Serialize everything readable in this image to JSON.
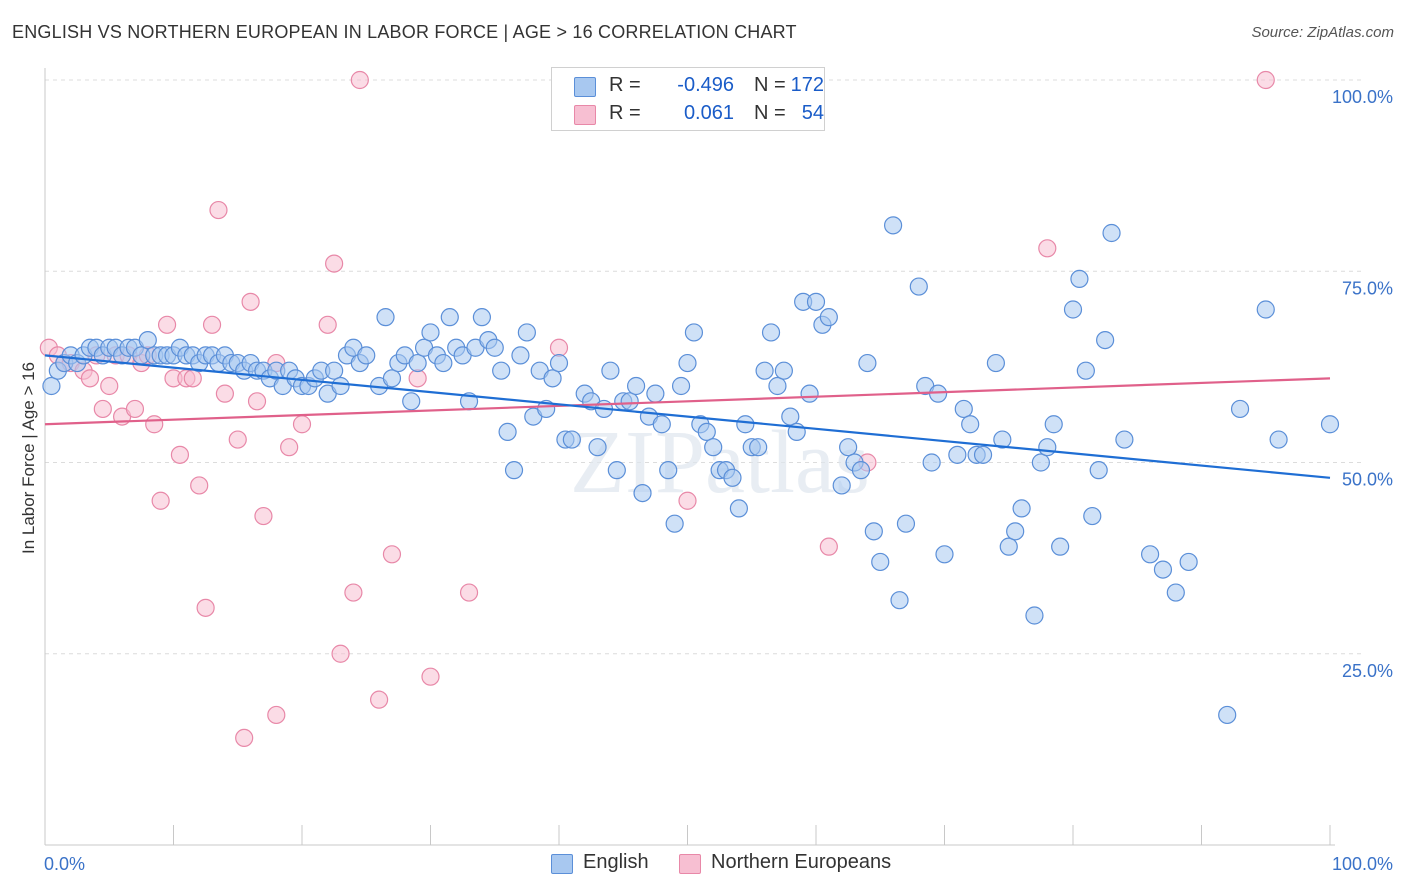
{
  "title": "ENGLISH VS NORTHERN EUROPEAN IN LABOR FORCE | AGE > 16 CORRELATION CHART",
  "source": "Source: ZipAtlas.com",
  "legend": {
    "rows": [
      {
        "r_label": "R =",
        "r_value": "-0.496",
        "n_label": "N =",
        "n_value": "172"
      },
      {
        "r_label": "R =",
        "r_value": "0.061",
        "n_label": "N =",
        "n_value": "54"
      }
    ]
  },
  "bottom_legend": {
    "english": "English",
    "northern": "Northern Europeans"
  },
  "colors": {
    "english_fill": "#a8c8f0",
    "english_stroke": "#5b8fd8",
    "english_line": "#1f6ed4",
    "northern_fill": "#f7bfd2",
    "northern_stroke": "#e888a8",
    "northern_line": "#e0608a",
    "axis_text": "#3a72c8",
    "grid": "#dcdcdc"
  },
  "chart_data": {
    "type": "scatter",
    "title": "ENGLISH VS NORTHERN EUROPEAN IN LABOR FORCE | AGE > 16 CORRELATION CHART",
    "ylabel": "In Labor Force | Age > 16",
    "xlabel": "",
    "xlim": [
      0,
      100
    ],
    "ylim": [
      0,
      100
    ],
    "x_tick_labels": [
      "0.0%",
      "100.0%"
    ],
    "y_tick_values": [
      25,
      50,
      75,
      100
    ],
    "y_tick_labels": [
      "25.0%",
      "50.0%",
      "75.0%",
      "100.0%"
    ],
    "grid": "horizontal dashed",
    "watermark": "ZIPatlas",
    "series": [
      {
        "name": "English",
        "r": -0.496,
        "n": 172,
        "trend": [
          [
            0,
            64.0
          ],
          [
            100,
            48.0
          ]
        ],
        "points": [
          [
            0.5,
            60
          ],
          [
            1,
            62
          ],
          [
            1.5,
            63
          ],
          [
            2,
            64
          ],
          [
            2.5,
            63
          ],
          [
            3,
            64
          ],
          [
            3.5,
            65
          ],
          [
            4,
            65
          ],
          [
            4.5,
            64
          ],
          [
            5,
            65
          ],
          [
            5.5,
            65
          ],
          [
            6,
            64
          ],
          [
            6.5,
            65
          ],
          [
            7,
            65
          ],
          [
            7.5,
            64
          ],
          [
            8,
            66
          ],
          [
            8.5,
            64
          ],
          [
            9,
            64
          ],
          [
            9.5,
            64
          ],
          [
            10,
            64
          ],
          [
            10.5,
            65
          ],
          [
            11,
            64
          ],
          [
            11.5,
            64
          ],
          [
            12,
            63
          ],
          [
            12.5,
            64
          ],
          [
            13,
            64
          ],
          [
            13.5,
            63
          ],
          [
            14,
            64
          ],
          [
            14.5,
            63
          ],
          [
            15,
            63
          ],
          [
            15.5,
            62
          ],
          [
            16,
            63
          ],
          [
            16.5,
            62
          ],
          [
            17,
            62
          ],
          [
            17.5,
            61
          ],
          [
            18,
            62
          ],
          [
            18.5,
            60
          ],
          [
            19,
            62
          ],
          [
            19.5,
            61
          ],
          [
            20,
            60
          ],
          [
            20.5,
            60
          ],
          [
            21,
            61
          ],
          [
            21.5,
            62
          ],
          [
            22,
            59
          ],
          [
            22.5,
            62
          ],
          [
            23,
            60
          ],
          [
            23.5,
            64
          ],
          [
            24,
            65
          ],
          [
            24.5,
            63
          ],
          [
            25,
            64
          ],
          [
            26,
            60
          ],
          [
            26.5,
            69
          ],
          [
            27,
            61
          ],
          [
            27.5,
            63
          ],
          [
            28,
            64
          ],
          [
            28.5,
            58
          ],
          [
            29,
            63
          ],
          [
            29.5,
            65
          ],
          [
            30,
            67
          ],
          [
            30.5,
            64
          ],
          [
            31,
            63
          ],
          [
            31.5,
            69
          ],
          [
            32,
            65
          ],
          [
            32.5,
            64
          ],
          [
            33,
            58
          ],
          [
            33.5,
            65
          ],
          [
            34,
            69
          ],
          [
            34.5,
            66
          ],
          [
            35,
            65
          ],
          [
            35.5,
            62
          ],
          [
            36,
            54
          ],
          [
            36.5,
            49
          ],
          [
            37,
            64
          ],
          [
            37.5,
            67
          ],
          [
            38,
            56
          ],
          [
            38.5,
            62
          ],
          [
            39,
            57
          ],
          [
            39.5,
            61
          ],
          [
            40,
            63
          ],
          [
            40.5,
            53
          ],
          [
            41,
            53
          ],
          [
            42,
            59
          ],
          [
            42.5,
            58
          ],
          [
            43,
            52
          ],
          [
            43.5,
            57
          ],
          [
            44,
            62
          ],
          [
            44.5,
            49
          ],
          [
            45,
            58
          ],
          [
            45.5,
            58
          ],
          [
            46,
            60
          ],
          [
            46.5,
            46
          ],
          [
            47,
            56
          ],
          [
            47.5,
            59
          ],
          [
            48,
            55
          ],
          [
            48.5,
            49
          ],
          [
            49,
            42
          ],
          [
            49.5,
            60
          ],
          [
            50,
            63
          ],
          [
            50.5,
            67
          ],
          [
            51,
            55
          ],
          [
            51.5,
            54
          ],
          [
            52,
            52
          ],
          [
            52.5,
            49
          ],
          [
            53,
            49
          ],
          [
            53.5,
            48
          ],
          [
            54,
            44
          ],
          [
            54.5,
            55
          ],
          [
            55,
            52
          ],
          [
            55.5,
            52
          ],
          [
            56,
            62
          ],
          [
            56.5,
            67
          ],
          [
            57,
            60
          ],
          [
            57.5,
            62
          ],
          [
            58,
            56
          ],
          [
            58.5,
            54
          ],
          [
            59,
            71
          ],
          [
            59.5,
            59
          ],
          [
            60,
            71
          ],
          [
            60.5,
            68
          ],
          [
            61,
            69
          ],
          [
            62,
            47
          ],
          [
            62.5,
            52
          ],
          [
            63,
            50
          ],
          [
            63.5,
            49
          ],
          [
            64,
            63
          ],
          [
            64.5,
            41
          ],
          [
            65,
            37
          ],
          [
            66,
            81
          ],
          [
            66.5,
            32
          ],
          [
            67,
            42
          ],
          [
            68,
            73
          ],
          [
            68.5,
            60
          ],
          [
            69,
            50
          ],
          [
            69.5,
            59
          ],
          [
            70,
            38
          ],
          [
            71,
            51
          ],
          [
            71.5,
            57
          ],
          [
            72,
            55
          ],
          [
            72.5,
            51
          ],
          [
            73,
            51
          ],
          [
            74,
            63
          ],
          [
            74.5,
            53
          ],
          [
            75,
            39
          ],
          [
            75.5,
            41
          ],
          [
            76,
            44
          ],
          [
            77,
            30
          ],
          [
            77.5,
            50
          ],
          [
            78,
            52
          ],
          [
            78.5,
            55
          ],
          [
            79,
            39
          ],
          [
            80,
            70
          ],
          [
            80.5,
            74
          ],
          [
            81,
            62
          ],
          [
            81.5,
            43
          ],
          [
            82,
            49
          ],
          [
            82.5,
            66
          ],
          [
            83,
            80
          ],
          [
            84,
            53
          ],
          [
            86,
            38
          ],
          [
            87,
            36
          ],
          [
            88,
            33
          ],
          [
            89,
            37
          ],
          [
            92,
            17
          ],
          [
            93,
            57
          ],
          [
            95,
            70
          ],
          [
            96,
            53
          ],
          [
            100,
            55
          ]
        ]
      },
      {
        "name": "Northern Europeans",
        "r": 0.061,
        "n": 54,
        "trend": [
          [
            0,
            55.0
          ],
          [
            100,
            61.0
          ]
        ],
        "points": [
          [
            0.3,
            65
          ],
          [
            1,
            64
          ],
          [
            1.5,
            63
          ],
          [
            2,
            63
          ],
          [
            3,
            62
          ],
          [
            3.5,
            61
          ],
          [
            4,
            64
          ],
          [
            4.5,
            57
          ],
          [
            5,
            60
          ],
          [
            5.5,
            64
          ],
          [
            6,
            56
          ],
          [
            6.5,
            64
          ],
          [
            7,
            57
          ],
          [
            7.5,
            63
          ],
          [
            8,
            64
          ],
          [
            8.5,
            55
          ],
          [
            9,
            45
          ],
          [
            9.5,
            68
          ],
          [
            10,
            61
          ],
          [
            10.5,
            51
          ],
          [
            11,
            61
          ],
          [
            11.5,
            61
          ],
          [
            12,
            47
          ],
          [
            12.5,
            31
          ],
          [
            13,
            68
          ],
          [
            13.5,
            83
          ],
          [
            14,
            59
          ],
          [
            15,
            53
          ],
          [
            15.5,
            14
          ],
          [
            16,
            71
          ],
          [
            16.5,
            58
          ],
          [
            17,
            43
          ],
          [
            18,
            63
          ],
          [
            18,
            17
          ],
          [
            19,
            52
          ],
          [
            20,
            55
          ],
          [
            22,
            68
          ],
          [
            22.5,
            76
          ],
          [
            23,
            25
          ],
          [
            24,
            33
          ],
          [
            24.5,
            100
          ],
          [
            26,
            19
          ],
          [
            27,
            38
          ],
          [
            29,
            61
          ],
          [
            30,
            22
          ],
          [
            33,
            33
          ],
          [
            40,
            65
          ],
          [
            50,
            45
          ],
          [
            61,
            39
          ],
          [
            64,
            50
          ],
          [
            78,
            78
          ],
          [
            95,
            100
          ]
        ]
      }
    ]
  }
}
